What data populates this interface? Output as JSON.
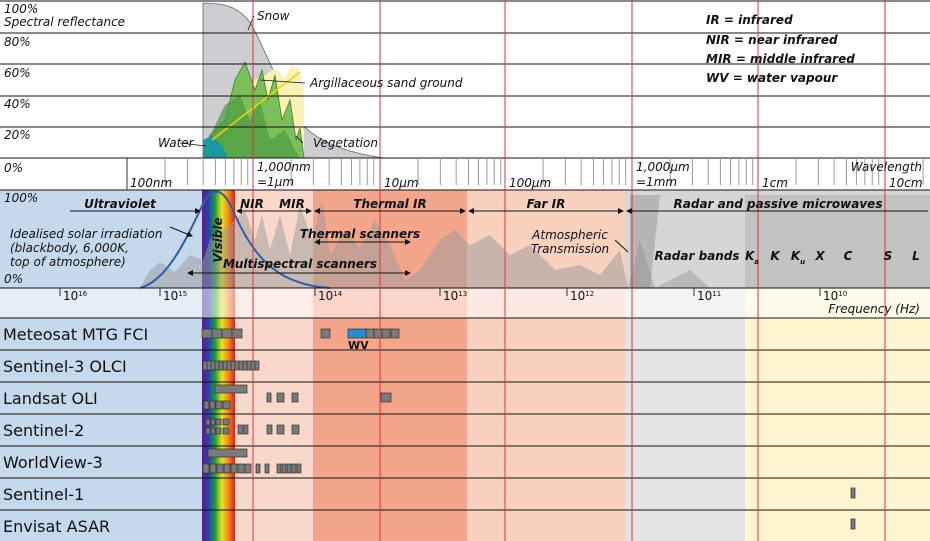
{
  "reflectance": {
    "title": "Spectral reflectance",
    "ticks": [
      "100%",
      "80%",
      "60%",
      "40%",
      "20%",
      "0%"
    ],
    "curves": {
      "snow": "Snow",
      "sand": "Argillaceous sand ground",
      "water": "Water",
      "vegetation": "Vegetation"
    }
  },
  "legend": [
    "IR = infrared",
    "NIR = near infrared",
    "MIR = middle infrared",
    "WV = water vapour"
  ],
  "wavelength": {
    "title": "Wavelength",
    "labels": [
      [
        "100nm"
      ],
      [
        "1,000nm",
        "=1μm"
      ],
      [
        "10μm"
      ],
      [
        "100μm"
      ],
      [
        "1,000μm",
        "=1mm"
      ],
      [
        "1cm"
      ],
      [
        "10cm"
      ]
    ]
  },
  "bands": {
    "ticks": [
      "100%",
      "0%"
    ],
    "ultraviolet": "Ultraviolet",
    "visible": "Visible",
    "nir": "NIR",
    "mir": "MIR",
    "thermal_ir": "Thermal IR",
    "far_ir": "Far IR",
    "radar": "Radar and passive microwaves",
    "thermal_scanners": "Thermal scanners",
    "multispectral_scanners": "Multispectral scanners",
    "solar": [
      "Idealised solar irradiation",
      "(blackbody, 6,000K,",
      "top of atmosphere)"
    ],
    "transmission": [
      "Atmospheric",
      "Transmission"
    ],
    "radar_bands": "Radar bands",
    "radar_letters": [
      {
        "letter": "K",
        "sub": "a"
      },
      {
        "letter": "K"
      },
      {
        "letter": "K",
        "sub": "u"
      },
      {
        "letter": "X"
      },
      {
        "letter": "C"
      },
      {
        "letter": "S"
      },
      {
        "letter": "L"
      }
    ]
  },
  "frequency": {
    "title": "Frequency (Hz)",
    "labels": [
      {
        "base": "10",
        "exp": "16"
      },
      {
        "base": "10",
        "exp": "15"
      },
      {
        "base": "10",
        "exp": "14"
      },
      {
        "base": "10",
        "exp": "13"
      },
      {
        "base": "10",
        "exp": "12"
      },
      {
        "base": "10",
        "exp": "11"
      },
      {
        "base": "10",
        "exp": "10"
      }
    ]
  },
  "sensors": {
    "names": [
      "Meteosat MTG FCI",
      "Sentinel-3 OLCI",
      "Landsat OLI",
      "Sentinel-2",
      "WorldView-3",
      "Sentinel-1",
      "Envisat ASAR"
    ],
    "wv_label": "WV"
  }
}
